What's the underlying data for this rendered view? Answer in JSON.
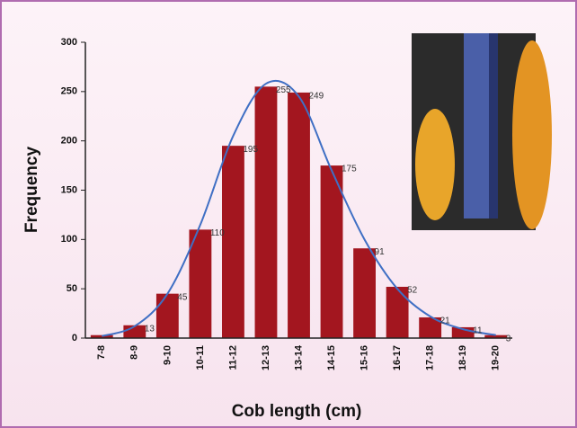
{
  "chart_data": {
    "type": "bar",
    "x_label": "Cob length (cm)",
    "y_label": "Frequency",
    "categories": [
      "7-8",
      "8-9",
      "9-10",
      "10-11",
      "11-12",
      "12-13",
      "13-14",
      "14-15",
      "15-16",
      "16-17",
      "17-18",
      "18-19",
      "19-20"
    ],
    "series": [
      {
        "color": "#a3161f",
        "values": [
          3,
          13,
          45,
          110,
          195,
          255,
          249,
          175,
          91,
          52,
          21,
          11,
          3
        ],
        "value_labels": [
          null,
          "13",
          "45",
          "110",
          "195",
          "255",
          "249",
          "175",
          "91",
          "52",
          "21",
          "11",
          "3"
        ]
      }
    ],
    "curve": {
      "color": "#3f6fc4",
      "values": [
        2,
        12,
        45,
        115,
        205,
        258,
        245,
        170,
        100,
        50,
        22,
        9,
        3
      ]
    },
    "ylim": [
      0,
      300
    ],
    "yticks": [
      0,
      50,
      100,
      150,
      200,
      250,
      300
    ],
    "grid": false
  }
}
